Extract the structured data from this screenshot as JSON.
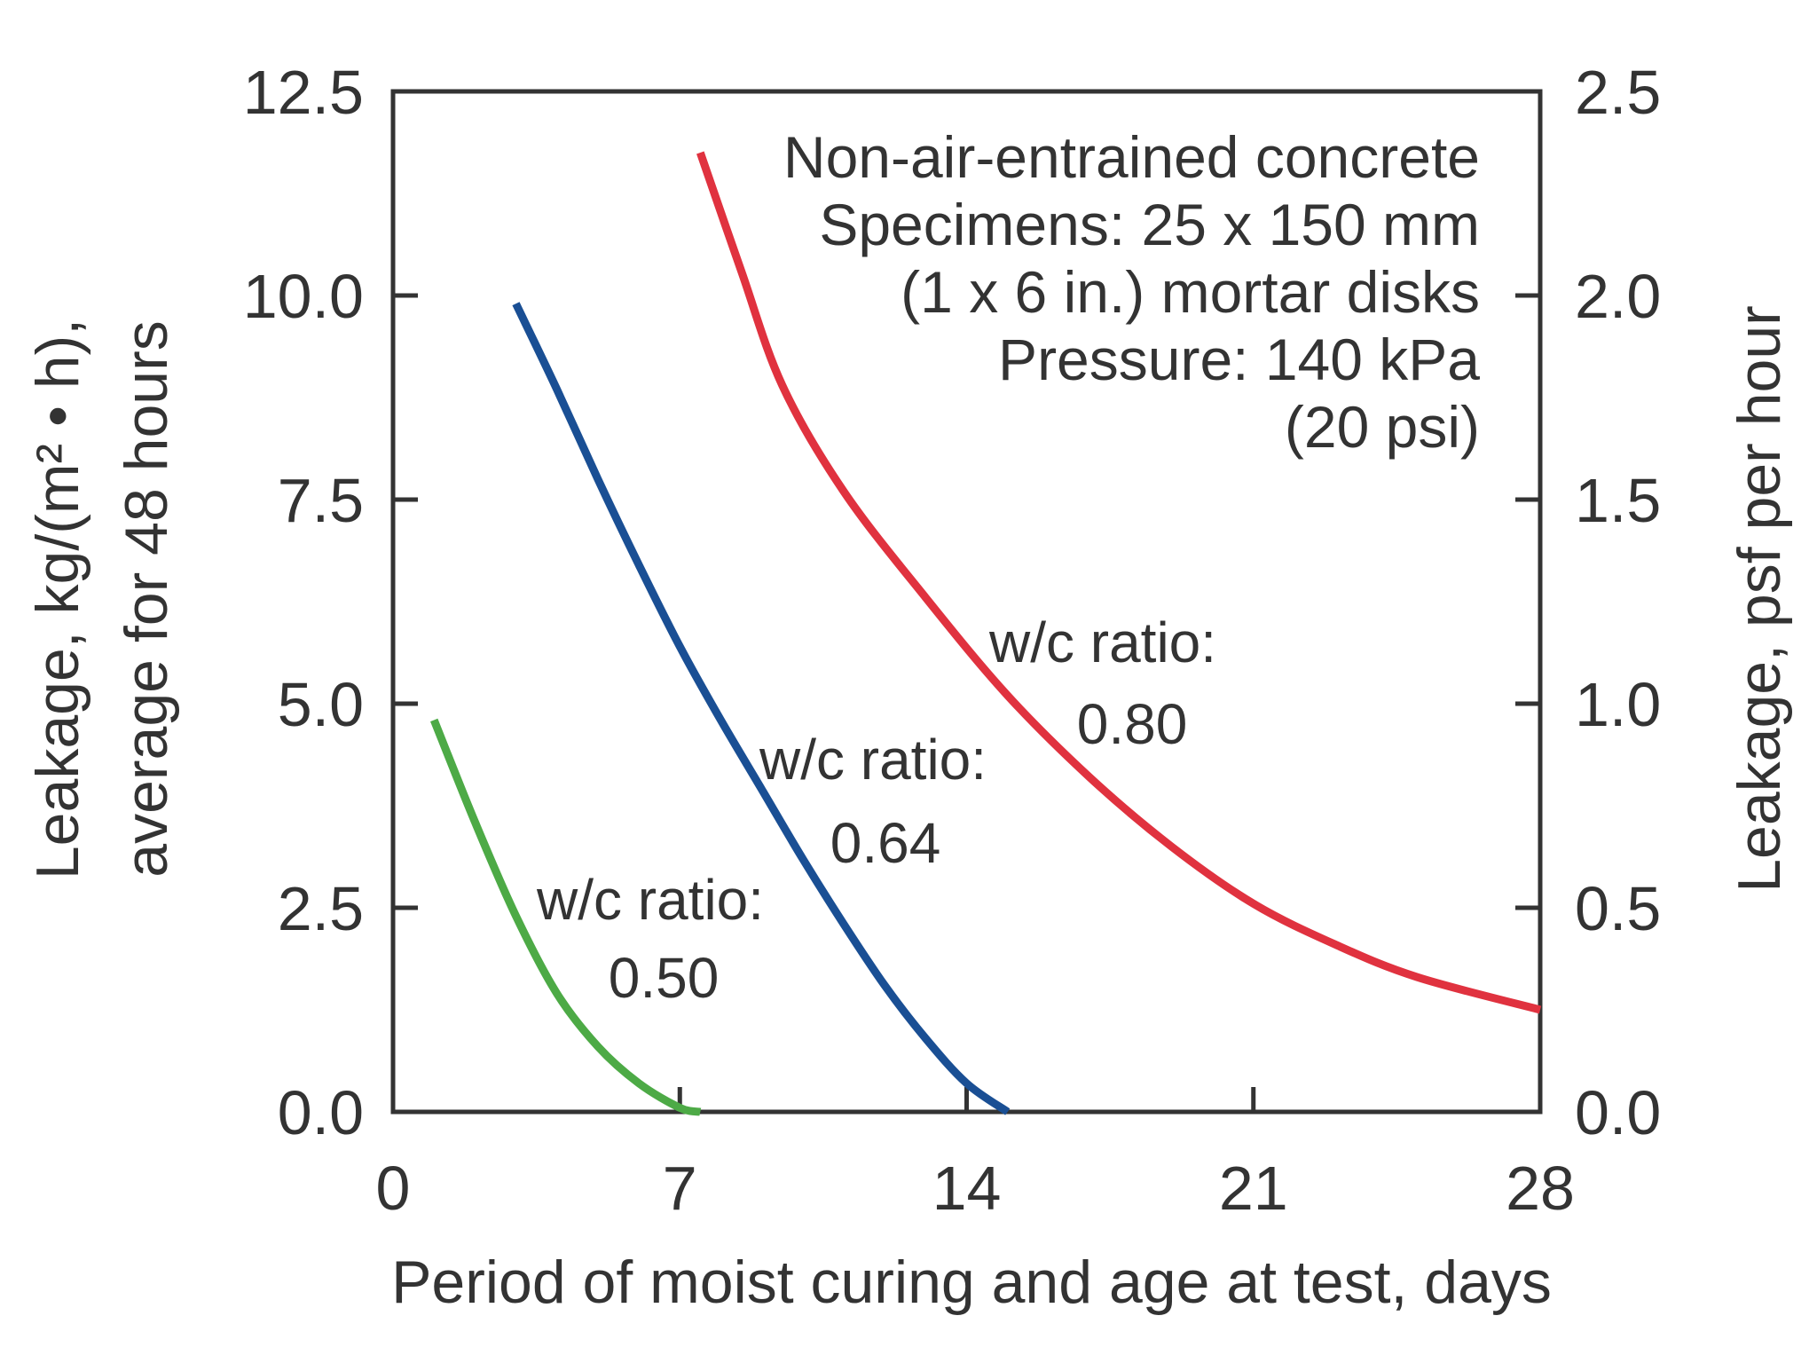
{
  "chart_data": {
    "type": "line",
    "title": "",
    "xlabel": "Period of moist curing and age at test, days",
    "ylabel_lines": [
      "Leakage, kg/(m² • h),",
      "average for 48 hours"
    ],
    "y2label": "Leakage, psf per hour",
    "xlim": [
      0,
      28
    ],
    "ylim": [
      0,
      12.5
    ],
    "y2lim": [
      0,
      2.5
    ],
    "x_ticks": [
      "0",
      "7",
      "14",
      "21",
      "28"
    ],
    "x_tick_values": [
      0,
      7,
      14,
      21,
      28
    ],
    "y_ticks": [
      "0.0",
      "2.5",
      "5.0",
      "7.5",
      "10.0",
      "12.5"
    ],
    "y_tick_values": [
      0,
      2.5,
      5,
      7.5,
      10,
      12.5
    ],
    "y2_ticks": [
      "0.0",
      "0.5",
      "1.0",
      "1.5",
      "2.0",
      "2.5"
    ],
    "y2_tick_values": [
      0,
      0.5,
      1,
      1.5,
      2,
      2.5
    ],
    "annotation_lines": [
      "Non-air-entrained concrete",
      "Specimens: 25 x 150 mm",
      "(1 x 6 in.) mortar disks",
      "Pressure: 140 kPa",
      "(20 psi)"
    ],
    "series": [
      {
        "name": "w/c ratio: 0.50",
        "label_line1": "w/c ratio:",
        "label_line2": "0.50",
        "color": "#4daa46",
        "x": [
          1.0,
          2.0,
          3.0,
          4.0,
          5.0,
          6.0,
          7.0,
          7.5
        ],
        "y": [
          4.8,
          3.55,
          2.4,
          1.45,
          0.8,
          0.35,
          0.05,
          0.0
        ]
      },
      {
        "name": "w/c ratio: 0.64",
        "label_line1": "w/c ratio:",
        "label_line2": "0.64",
        "color": "#1a4f94",
        "x": [
          3.0,
          4.0,
          5.0,
          6.0,
          7.0,
          8.0,
          9.0,
          10.0,
          11.0,
          12.0,
          13.0,
          14.0,
          15.0
        ],
        "y": [
          9.9,
          8.85,
          7.75,
          6.7,
          5.7,
          4.8,
          3.95,
          3.1,
          2.3,
          1.55,
          0.9,
          0.35,
          0.0
        ]
      },
      {
        "name": "w/c ratio: 0.80",
        "label_line1": "w/c ratio:",
        "label_line2": "0.80",
        "color": "#e0323f",
        "x": [
          7.5,
          8.5,
          9.5,
          11.0,
          13.0,
          15.0,
          17.0,
          19.0,
          21.0,
          23.0,
          25.0,
          28.0
        ],
        "y": [
          11.75,
          10.3,
          8.9,
          7.6,
          6.3,
          5.1,
          4.1,
          3.25,
          2.55,
          2.05,
          1.65,
          1.25
        ]
      }
    ]
  }
}
